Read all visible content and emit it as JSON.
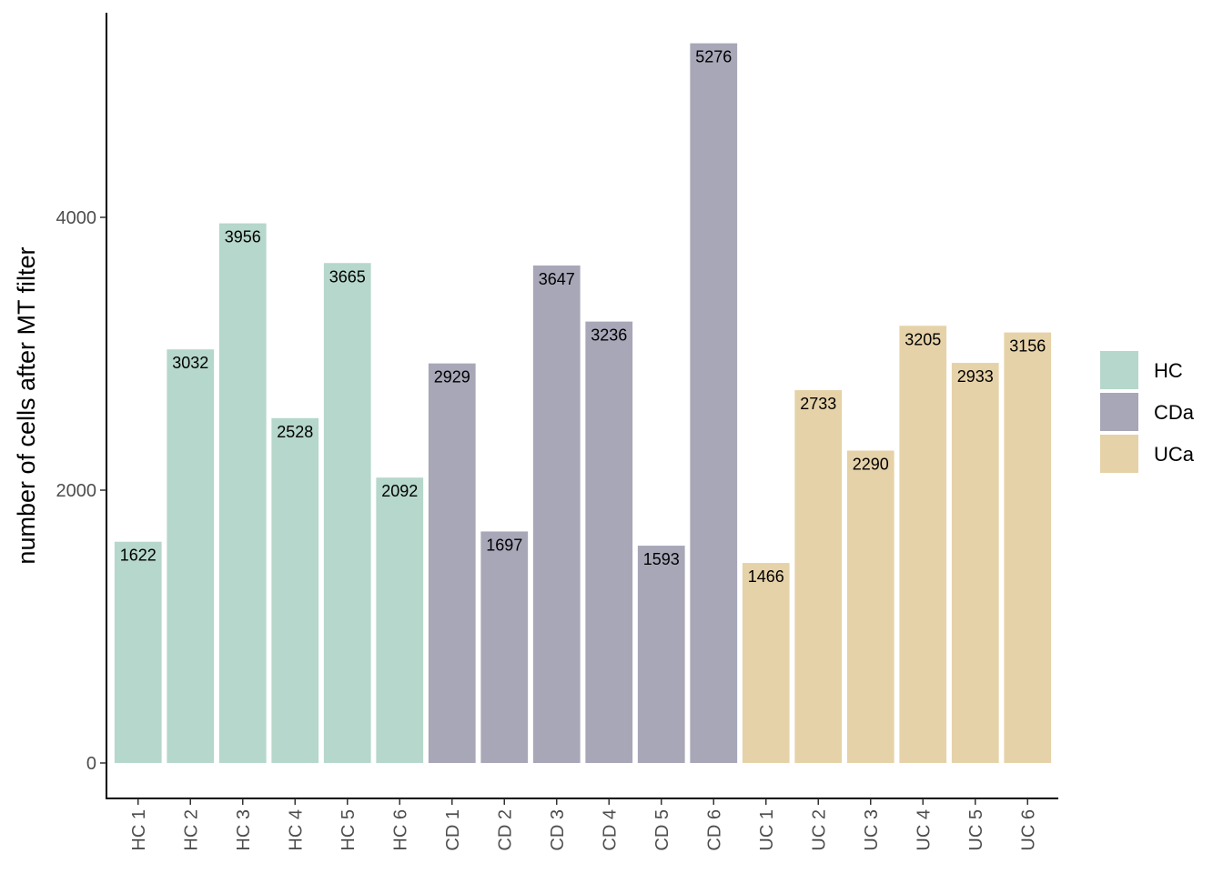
{
  "chart_data": {
    "type": "bar",
    "categories": [
      "HC 1",
      "HC 2",
      "HC 3",
      "HC 4",
      "HC 5",
      "HC 6",
      "CD 1",
      "CD 2",
      "CD 3",
      "CD 4",
      "CD 5",
      "CD 6",
      "UC 1",
      "UC 2",
      "UC 3",
      "UC 4",
      "UC 5",
      "UC 6"
    ],
    "values": [
      1622,
      3032,
      3956,
      2528,
      3665,
      2092,
      2929,
      1697,
      3647,
      3236,
      1593,
      5276,
      1466,
      2733,
      2290,
      3205,
      2933,
      3156
    ],
    "data_labels": [
      "1622",
      "3032",
      "3956",
      "2528",
      "3665",
      "2092",
      "2929",
      "1697",
      "3647",
      "3236",
      "1593",
      "5276",
      "1466",
      "2733",
      "2290",
      "3205",
      "2933",
      "3156"
    ],
    "group": [
      "HC",
      "HC",
      "HC",
      "HC",
      "HC",
      "HC",
      "CDa",
      "CDa",
      "CDa",
      "CDa",
      "CDa",
      "CDa",
      "UCa",
      "UCa",
      "UCa",
      "UCa",
      "UCa",
      "UCa"
    ],
    "title": "",
    "xlabel": "",
    "ylabel": "number of cells after MT filter",
    "ylim": [
      -260,
      5500
    ],
    "yticks": [
      0,
      2000,
      4000
    ],
    "ytick_labels": [
      "0",
      "2000",
      "4000"
    ],
    "grid": false,
    "legend": {
      "position": "right",
      "entries": [
        {
          "label": "HC",
          "color": "#b6d7cb"
        },
        {
          "label": "CDa",
          "color": "#a8a7b8"
        },
        {
          "label": "UCa",
          "color": "#e6d2a8"
        }
      ]
    }
  }
}
